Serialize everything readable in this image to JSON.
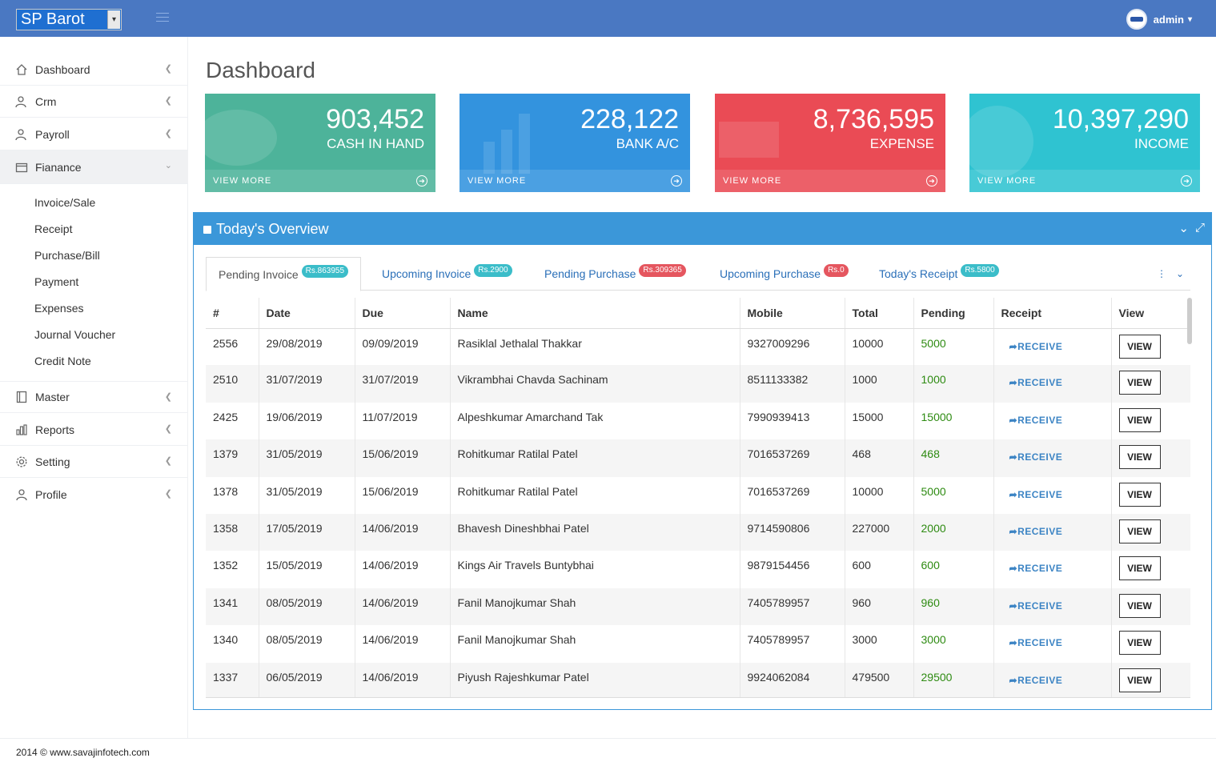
{
  "topbar": {
    "company": "SP Barot",
    "user": "admin"
  },
  "sidebar": {
    "items": [
      {
        "label": "Dashboard",
        "icon": "home-icon"
      },
      {
        "label": "Crm",
        "icon": "users-icon"
      },
      {
        "label": "Payroll",
        "icon": "user-money-icon"
      },
      {
        "label": "Fianance",
        "icon": "wallet-icon"
      },
      {
        "label": "Master",
        "icon": "book-icon"
      },
      {
        "label": "Reports",
        "icon": "bar-chart-icon"
      },
      {
        "label": "Setting",
        "icon": "gear-icon"
      },
      {
        "label": "Profile",
        "icon": "user-icon"
      }
    ],
    "finance_sub": [
      "Invoice/Sale",
      "Receipt",
      "Purchase/Bill",
      "Payment",
      "Expenses",
      "Journal Voucher",
      "Credit Note"
    ]
  },
  "page": {
    "title": "Dashboard"
  },
  "cards": [
    {
      "value": "903,452",
      "label": "CASH IN HAND",
      "footer": "VIEW MORE",
      "color": "#4db39a"
    },
    {
      "value": "228,122",
      "label": "BANK A/C",
      "footer": "VIEW MORE",
      "color": "#3393de"
    },
    {
      "value": "8,736,595",
      "label": "EXPENSE",
      "footer": "VIEW MORE",
      "color": "#ea4b55"
    },
    {
      "value": "10,397,290",
      "label": "INCOME",
      "footer": "VIEW MORE",
      "color": "#2fc3d1"
    }
  ],
  "overview": {
    "title": "Today's Overview",
    "tabs": [
      {
        "label": "Pending Invoice",
        "badge": "Rs.863955"
      },
      {
        "label": "Upcoming Invoice",
        "badge": "Rs.2900"
      },
      {
        "label": "Pending Purchase",
        "badge": "Rs.309365"
      },
      {
        "label": "Upcoming Purchase",
        "badge": "Rs.0"
      },
      {
        "label": "Today's Receipt",
        "badge": "Rs.5800"
      }
    ],
    "columns": [
      "#",
      "Date",
      "Due",
      "Name",
      "Mobile",
      "Total",
      "Pending",
      "Receipt",
      "View"
    ],
    "receive_label": "RECEIVE",
    "view_label": "VIEW",
    "rows": [
      {
        "id": "2556",
        "date": "29/08/2019",
        "due": "09/09/2019",
        "name": "Rasiklal Jethalal Thakkar",
        "mobile": "9327009296",
        "total": "10000",
        "pending": "5000"
      },
      {
        "id": "2510",
        "date": "31/07/2019",
        "due": "31/07/2019",
        "name": "Vikrambhai Chavda Sachinam",
        "mobile": "8511133382",
        "total": "1000",
        "pending": "1000"
      },
      {
        "id": "2425",
        "date": "19/06/2019",
        "due": "11/07/2019",
        "name": "Alpeshkumar Amarchand Tak",
        "mobile": "7990939413",
        "total": "15000",
        "pending": "15000"
      },
      {
        "id": "1379",
        "date": "31/05/2019",
        "due": "15/06/2019",
        "name": "Rohitkumar Ratilal Patel",
        "mobile": "7016537269",
        "total": "468",
        "pending": "468"
      },
      {
        "id": "1378",
        "date": "31/05/2019",
        "due": "15/06/2019",
        "name": "Rohitkumar Ratilal Patel",
        "mobile": "7016537269",
        "total": "10000",
        "pending": "5000"
      },
      {
        "id": "1358",
        "date": "17/05/2019",
        "due": "14/06/2019",
        "name": "Bhavesh Dineshbhai Patel",
        "mobile": "9714590806",
        "total": "227000",
        "pending": "2000"
      },
      {
        "id": "1352",
        "date": "15/05/2019",
        "due": "14/06/2019",
        "name": "Kings Air Travels Buntybhai",
        "mobile": "9879154456",
        "total": "600",
        "pending": "600"
      },
      {
        "id": "1341",
        "date": "08/05/2019",
        "due": "14/06/2019",
        "name": "Fanil Manojkumar Shah",
        "mobile": "7405789957",
        "total": "960",
        "pending": "960"
      },
      {
        "id": "1340",
        "date": "08/05/2019",
        "due": "14/06/2019",
        "name": "Fanil Manojkumar Shah",
        "mobile": "7405789957",
        "total": "3000",
        "pending": "3000"
      },
      {
        "id": "1337",
        "date": "06/05/2019",
        "due": "14/06/2019",
        "name": "Piyush Rajeshkumar Patel",
        "mobile": "9924062084",
        "total": "479500",
        "pending": "29500"
      }
    ]
  },
  "footer": {
    "text": "2014 © www.savajinfotech.com"
  }
}
